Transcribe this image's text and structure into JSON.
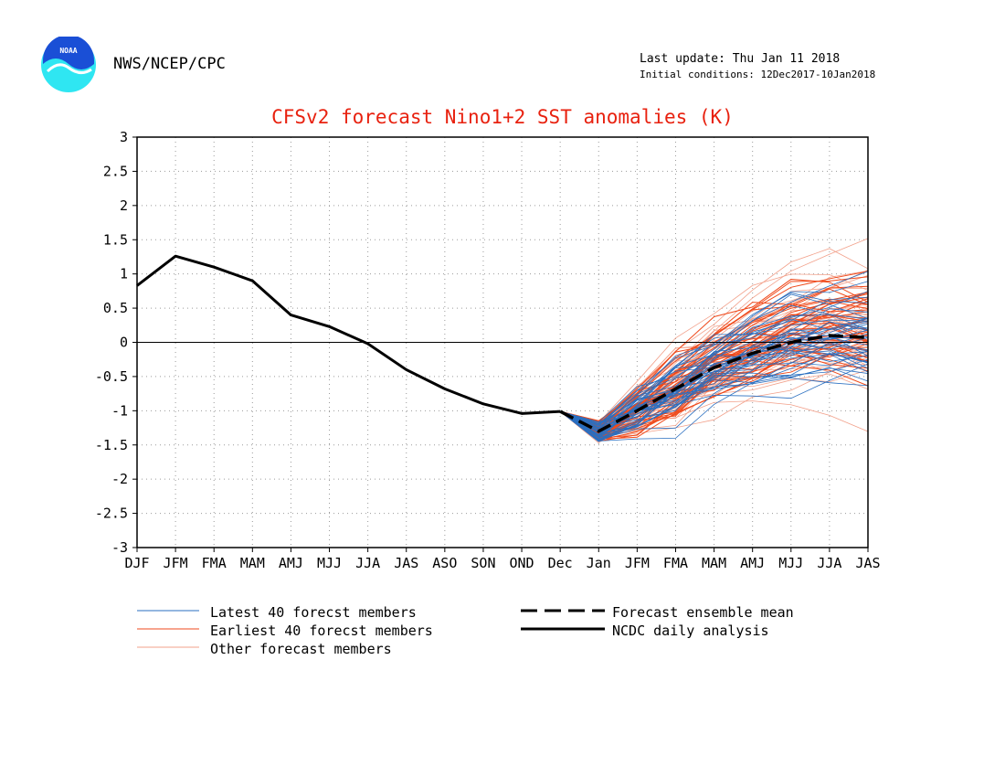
{
  "header": {
    "agency": "NWS/NCEP/CPC",
    "last_update": "Last update: Thu Jan 11 2018",
    "initial_conditions": "Initial conditions: 12Dec2017-10Jan2018",
    "logo_text": "NOAA"
  },
  "colors": {
    "latest": "#2a6fc0",
    "earliest": "#ef4a1c",
    "other": "#f2a08a",
    "title": "#e8210f",
    "logo_blue": "#1a4fd6",
    "logo_cyan": "#2fe6f2"
  },
  "chart_data": {
    "type": "line",
    "title": "CFSv2 forecast Nino1+2 SST anomalies (K)",
    "xlabel": "",
    "ylabel": "",
    "categories": [
      "DJF",
      "JFM",
      "FMA",
      "MAM",
      "AMJ",
      "MJJ",
      "JJA",
      "JAS",
      "ASO",
      "SON",
      "OND",
      "Dec",
      "Jan",
      "JFM",
      "FMA",
      "MAM",
      "AMJ",
      "MJJ",
      "JJA",
      "JAS"
    ],
    "ylim": [
      -3,
      3
    ],
    "yticks": [
      "3",
      "2.5",
      "2",
      "1.5",
      "1",
      "0.5",
      "0",
      "-0.5",
      "-1",
      "-1.5",
      "-2",
      "-2.5",
      "-3"
    ],
    "grid": true,
    "analysis": {
      "name": "NCDC daily analysis",
      "values": [
        0.83,
        1.26,
        1.1,
        0.9,
        0.4,
        0.23,
        -0.02,
        -0.4,
        -0.68,
        -0.9,
        -1.04,
        -1.01,
        null,
        null,
        null,
        null,
        null,
        null,
        null,
        null
      ]
    },
    "ensemble_mean": {
      "name": "Forecast ensemble mean",
      "values": [
        null,
        null,
        null,
        null,
        null,
        null,
        null,
        null,
        null,
        null,
        null,
        -1.01,
        -1.3,
        -1.0,
        -0.68,
        -0.37,
        -0.16,
        0.0,
        0.1,
        0.07
      ]
    },
    "legend": {
      "placement": "bottom",
      "latest": "Latest 40 forecst members",
      "earliest": "Earliest 40 forecst members",
      "other": "Other forecast members",
      "mean": "Forecast ensemble mean",
      "analysis": "NCDC daily analysis"
    }
  }
}
